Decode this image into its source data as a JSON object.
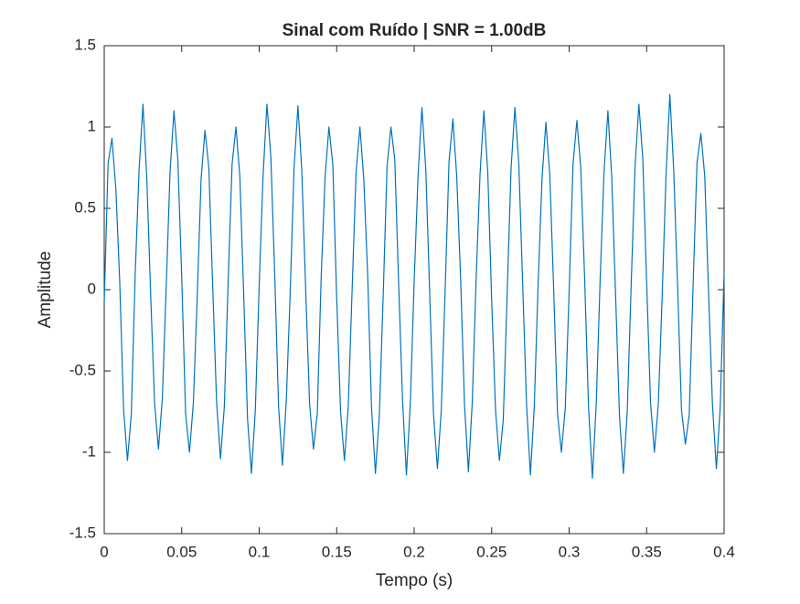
{
  "chart_data": {
    "type": "line",
    "title": "Sinal com Ruído | SNR = 1.00dB",
    "x_label": "Tempo (s)",
    "y_label": "Amplitude",
    "x": [
      0,
      0.0025,
      0.005,
      0.0075,
      0.01,
      0.0125,
      0.015,
      0.0175,
      0.02,
      0.0225,
      0.025,
      0.0275,
      0.03,
      0.0325,
      0.035,
      0.0375,
      0.04,
      0.0425,
      0.045,
      0.0475,
      0.05,
      0.0525,
      0.055,
      0.0575,
      0.06,
      0.0625,
      0.065,
      0.0675,
      0.07,
      0.0725,
      0.075,
      0.0775,
      0.08,
      0.0825,
      0.085,
      0.0875,
      0.09,
      0.0925,
      0.095,
      0.0975,
      0.1,
      0.1025,
      0.105,
      0.1075,
      0.11,
      0.1125,
      0.115,
      0.1175,
      0.12,
      0.1225,
      0.125,
      0.1275,
      0.13,
      0.1325,
      0.135,
      0.1375,
      0.14,
      0.1425,
      0.145,
      0.1475,
      0.15,
      0.1525,
      0.155,
      0.1575,
      0.16,
      0.1625,
      0.165,
      0.1675,
      0.17,
      0.1725,
      0.175,
      0.1775,
      0.18,
      0.1825,
      0.185,
      0.1875,
      0.19,
      0.1925,
      0.195,
      0.1975,
      0.2,
      0.2025,
      0.205,
      0.2075,
      0.21,
      0.2125,
      0.215,
      0.2175,
      0.22,
      0.2225,
      0.225,
      0.2275,
      0.23,
      0.2325,
      0.235,
      0.2375,
      0.24,
      0.2425,
      0.245,
      0.2475,
      0.25,
      0.2525,
      0.255,
      0.2575,
      0.26,
      0.2625,
      0.265,
      0.2675,
      0.27,
      0.2725,
      0.275,
      0.2775,
      0.28,
      0.2825,
      0.285,
      0.2875,
      0.29,
      0.2925,
      0.295,
      0.2975,
      0.3,
      0.3025,
      0.305,
      0.3075,
      0.31,
      0.3125,
      0.315,
      0.3175,
      0.32,
      0.3225,
      0.325,
      0.3275,
      0.33,
      0.3325,
      0.335,
      0.3375,
      0.34,
      0.3425,
      0.345,
      0.3475,
      0.35,
      0.3525,
      0.355,
      0.3575,
      0.36,
      0.3625,
      0.365,
      0.3675,
      0.37,
      0.3725,
      0.375,
      0.3775,
      0.38,
      0.3825,
      0.385,
      0.3875,
      0.39,
      0.3925,
      0.395,
      0.3975,
      0.4
    ],
    "series": [
      {
        "color": "#0072bd",
        "values": [
          -0.08,
          0.78,
          0.93,
          0.62,
          0.05,
          -0.74,
          -1.05,
          -0.76,
          0.1,
          0.74,
          1.14,
          0.68,
          -0.04,
          -0.7,
          -0.98,
          -0.67,
          0.02,
          0.73,
          1.1,
          0.8,
          0.08,
          -0.76,
          -1.0,
          -0.7,
          -0.05,
          0.68,
          0.98,
          0.75,
          0.02,
          -0.69,
          -1.04,
          -0.72,
          0.06,
          0.77,
          1.0,
          0.7,
          -0.03,
          -0.8,
          -1.13,
          -0.74,
          0.03,
          0.7,
          1.14,
          0.82,
          0.1,
          -0.72,
          -1.08,
          -0.68,
          -0.02,
          0.75,
          1.13,
          0.73,
          0.0,
          -0.7,
          -0.98,
          -0.76,
          0.08,
          0.69,
          1.0,
          0.77,
          -0.05,
          -0.75,
          -1.05,
          -0.71,
          0.01,
          0.72,
          1.0,
          0.68,
          0.09,
          -0.73,
          -1.13,
          -0.78,
          -0.04,
          0.76,
          1.0,
          0.8,
          0.03,
          -0.68,
          -1.14,
          -0.7,
          0.05,
          0.7,
          1.12,
          0.74,
          -0.02,
          -0.77,
          -1.1,
          -0.74,
          0.0,
          0.79,
          1.05,
          0.69,
          0.06,
          -0.71,
          -1.12,
          -0.69,
          0.07,
          0.71,
          1.1,
          0.72,
          -0.06,
          -0.74,
          -1.05,
          -0.8,
          -0.03,
          0.74,
          1.12,
          0.78,
          0.04,
          -0.7,
          -1.14,
          -0.72,
          0.04,
          0.68,
          1.03,
          0.71,
          0.01,
          -0.76,
          -1.0,
          -0.73,
          -0.01,
          0.77,
          1.04,
          0.75,
          0.07,
          -0.72,
          -1.16,
          -0.7,
          0.06,
          0.72,
          1.1,
          0.69,
          -0.04,
          -0.78,
          -1.13,
          -0.75,
          0.02,
          0.75,
          1.14,
          0.81,
          0.05,
          -0.69,
          -1.0,
          -0.71,
          -0.05,
          0.7,
          1.2,
          0.73,
          0.02,
          -0.74,
          -0.95,
          -0.77,
          0.03,
          0.78,
          0.96,
          0.7,
          -0.03,
          -0.71,
          -1.1,
          -0.72,
          0.11
        ]
      }
    ],
    "xlim": [
      0,
      0.4
    ],
    "xticks": [
      0,
      0.05,
      0.1,
      0.15,
      0.2,
      0.25,
      0.3,
      0.35,
      0.4
    ],
    "ylim": [
      -1.5,
      1.5
    ],
    "yticks": [
      -1.5,
      -1,
      -0.5,
      0,
      0.5,
      1,
      1.5
    ]
  }
}
